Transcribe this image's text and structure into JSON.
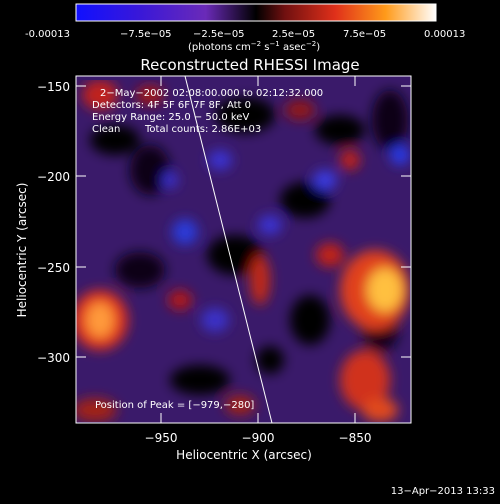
{
  "colorbar": {
    "tick_labels": [
      "-0.00013",
      "−7.5e−05",
      "−2.5e−05",
      "2.5e−05",
      "7.5e−05",
      "0.00013"
    ],
    "unit_main": "(photons cm",
    "unit_exp1": "−2",
    "unit_mid": " s",
    "unit_exp2": "−1",
    "unit_tail": " asec",
    "unit_exp3": "−2",
    "unit_close": ")"
  },
  "plot": {
    "title": "Reconstructed RHESSI Image",
    "x_label": "Heliocentric X (arcsec)",
    "y_label": "Heliocentric Y (arcsec)",
    "x_ticks": [
      "−950",
      "−900",
      "−850"
    ],
    "y_ticks": [
      "−150",
      "−200",
      "−250",
      "−300"
    ],
    "x_range": [
      -996,
      -788
    ],
    "y_range": [
      -336,
      -144
    ]
  },
  "annotations": {
    "time_range": "2−May−2002 02:08:00.000 to 02:12:32.000",
    "detectors": "Detectors: 4F 5F 6F 7F 8F, Att 0",
    "energy": "Energy Range: 25.0 − 50.0 keV",
    "clean": "Clean",
    "total_counts": "Total counts: 2.86E+03",
    "peak": "Position of Peak = [−979,−280]"
  },
  "footer": {
    "timestamp": "13−Apr−2013 13:33"
  }
}
